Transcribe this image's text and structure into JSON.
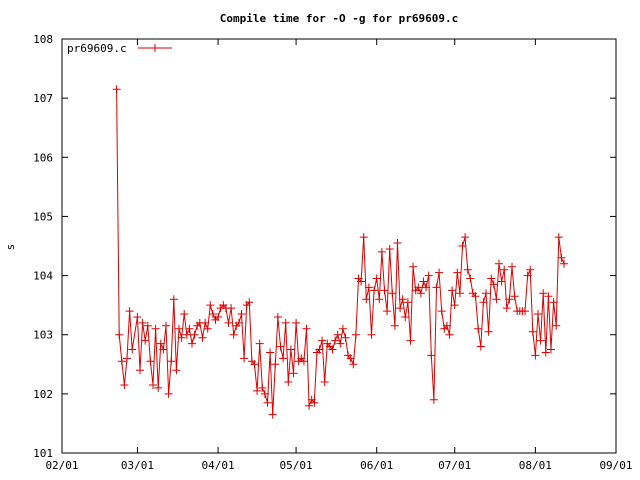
{
  "chart_data": {
    "type": "line",
    "title": "Compile time for -O -g for pr69609.c",
    "xlabel": "",
    "ylabel": "s",
    "grid": false,
    "legend_position": "top-left",
    "colors": {
      "series": "#dd0000",
      "axis": "#000000",
      "background": "#ffffff"
    },
    "x_ticks": [
      "02/01",
      "03/01",
      "04/01",
      "05/01",
      "06/01",
      "07/01",
      "08/01",
      "09/01"
    ],
    "xlim": [
      "02/01",
      "09/01"
    ],
    "y_ticks": [
      "101",
      "102",
      "103",
      "104",
      "105",
      "106",
      "107",
      "108"
    ],
    "ylim": [
      101,
      108
    ],
    "series": [
      {
        "name": "pr69609.c",
        "points": [
          [
            "02/22",
            107.15
          ],
          [
            "02/23",
            103.0
          ],
          [
            "02/24",
            102.55
          ],
          [
            "02/25",
            102.15
          ],
          [
            "02/26",
            102.6
          ],
          [
            "02/27",
            103.4
          ],
          [
            "02/28",
            102.75
          ],
          [
            "03/01",
            103.3
          ],
          [
            "03/02",
            102.4
          ],
          [
            "03/03",
            103.2
          ],
          [
            "03/04",
            102.9
          ],
          [
            "03/05",
            103.15
          ],
          [
            "03/06",
            102.55
          ],
          [
            "03/07",
            102.15
          ],
          [
            "03/08",
            103.1
          ],
          [
            "03/09",
            102.1
          ],
          [
            "03/10",
            102.85
          ],
          [
            "03/11",
            102.75
          ],
          [
            "03/12",
            103.15
          ],
          [
            "03/13",
            102.0
          ],
          [
            "03/14",
            102.55
          ],
          [
            "03/15",
            103.6
          ],
          [
            "03/16",
            102.4
          ],
          [
            "03/17",
            103.1
          ],
          [
            "03/18",
            102.95
          ],
          [
            "03/19",
            103.35
          ],
          [
            "03/20",
            103.0
          ],
          [
            "03/21",
            103.1
          ],
          [
            "03/22",
            102.85
          ],
          [
            "03/23",
            103.0
          ],
          [
            "03/24",
            103.15
          ],
          [
            "03/25",
            103.2
          ],
          [
            "03/26",
            102.95
          ],
          [
            "03/27",
            103.2
          ],
          [
            "03/28",
            103.1
          ],
          [
            "03/29",
            103.5
          ],
          [
            "03/30",
            103.35
          ],
          [
            "03/31",
            103.25
          ],
          [
            "04/01",
            103.3
          ],
          [
            "04/02",
            103.45
          ],
          [
            "04/03",
            103.5
          ],
          [
            "04/04",
            103.45
          ],
          [
            "04/05",
            103.2
          ],
          [
            "04/06",
            103.45
          ],
          [
            "04/07",
            103.0
          ],
          [
            "04/08",
            103.15
          ],
          [
            "04/09",
            103.2
          ],
          [
            "04/10",
            103.35
          ],
          [
            "04/11",
            102.6
          ],
          [
            "04/12",
            103.5
          ],
          [
            "04/13",
            103.55
          ],
          [
            "04/14",
            102.55
          ],
          [
            "04/15",
            102.5
          ],
          [
            "04/16",
            102.05
          ],
          [
            "04/17",
            102.85
          ],
          [
            "04/18",
            102.1
          ],
          [
            "04/19",
            102.0
          ],
          [
            "04/20",
            101.85
          ],
          [
            "04/21",
            102.7
          ],
          [
            "04/22",
            101.65
          ],
          [
            "04/23",
            102.5
          ],
          [
            "04/24",
            103.3
          ],
          [
            "04/25",
            102.8
          ],
          [
            "04/26",
            102.6
          ],
          [
            "04/27",
            103.2
          ],
          [
            "04/28",
            102.2
          ],
          [
            "04/29",
            102.75
          ],
          [
            "04/30",
            102.35
          ],
          [
            "05/01",
            103.2
          ],
          [
            "05/02",
            102.55
          ],
          [
            "05/03",
            102.6
          ],
          [
            "05/04",
            102.55
          ],
          [
            "05/05",
            103.1
          ],
          [
            "05/06",
            101.8
          ],
          [
            "05/07",
            101.9
          ],
          [
            "05/08",
            101.85
          ],
          [
            "05/09",
            102.7
          ],
          [
            "05/10",
            102.75
          ],
          [
            "05/11",
            102.9
          ],
          [
            "05/12",
            102.2
          ],
          [
            "05/13",
            102.85
          ],
          [
            "05/14",
            102.8
          ],
          [
            "05/15",
            102.75
          ],
          [
            "05/16",
            102.9
          ],
          [
            "05/17",
            103.0
          ],
          [
            "05/18",
            102.85
          ],
          [
            "05/19",
            103.1
          ],
          [
            "05/20",
            102.95
          ],
          [
            "05/21",
            102.65
          ],
          [
            "05/22",
            102.6
          ],
          [
            "05/23",
            102.5
          ],
          [
            "05/24",
            103.0
          ],
          [
            "05/25",
            103.95
          ],
          [
            "05/26",
            103.9
          ],
          [
            "05/27",
            104.65
          ],
          [
            "05/28",
            103.6
          ],
          [
            "05/29",
            103.8
          ],
          [
            "05/30",
            103.0
          ],
          [
            "05/31",
            103.75
          ],
          [
            "06/01",
            103.95
          ],
          [
            "06/02",
            103.6
          ],
          [
            "06/03",
            104.4
          ],
          [
            "06/04",
            103.75
          ],
          [
            "06/05",
            103.4
          ],
          [
            "06/06",
            104.45
          ],
          [
            "06/07",
            103.7
          ],
          [
            "06/08",
            103.15
          ],
          [
            "06/09",
            104.55
          ],
          [
            "06/10",
            103.45
          ],
          [
            "06/11",
            103.6
          ],
          [
            "06/12",
            103.3
          ],
          [
            "06/13",
            103.55
          ],
          [
            "06/14",
            102.9
          ],
          [
            "06/15",
            104.15
          ],
          [
            "06/16",
            103.75
          ],
          [
            "06/17",
            103.8
          ],
          [
            "06/18",
            103.7
          ],
          [
            "06/19",
            103.9
          ],
          [
            "06/20",
            103.8
          ],
          [
            "06/21",
            104.0
          ],
          [
            "06/22",
            102.65
          ],
          [
            "06/23",
            101.9
          ],
          [
            "06/24",
            103.8
          ],
          [
            "06/25",
            104.05
          ],
          [
            "06/26",
            103.4
          ],
          [
            "06/27",
            103.1
          ],
          [
            "06/28",
            103.15
          ],
          [
            "06/29",
            103.0
          ],
          [
            "06/30",
            103.75
          ],
          [
            "07/01",
            103.5
          ],
          [
            "07/02",
            104.05
          ],
          [
            "07/03",
            103.7
          ],
          [
            "07/04",
            104.5
          ],
          [
            "07/05",
            104.65
          ],
          [
            "07/06",
            104.1
          ],
          [
            "07/07",
            103.95
          ],
          [
            "07/08",
            103.7
          ],
          [
            "07/09",
            103.65
          ],
          [
            "07/10",
            103.1
          ],
          [
            "07/11",
            102.8
          ],
          [
            "07/12",
            103.55
          ],
          [
            "07/13",
            103.7
          ],
          [
            "07/14",
            103.05
          ],
          [
            "07/15",
            103.95
          ],
          [
            "07/16",
            103.85
          ],
          [
            "07/17",
            103.6
          ],
          [
            "07/18",
            104.2
          ],
          [
            "07/19",
            103.9
          ],
          [
            "07/20",
            104.1
          ],
          [
            "07/21",
            103.45
          ],
          [
            "07/22",
            103.6
          ],
          [
            "07/23",
            104.15
          ],
          [
            "07/24",
            103.65
          ],
          [
            "07/25",
            103.4
          ],
          [
            "07/26",
            103.4
          ],
          [
            "07/27",
            103.4
          ],
          [
            "07/28",
            103.4
          ],
          [
            "07/29",
            104.0
          ],
          [
            "07/30",
            104.1
          ],
          [
            "07/31",
            103.05
          ],
          [
            "08/01",
            102.65
          ],
          [
            "08/02",
            103.35
          ],
          [
            "08/03",
            102.9
          ],
          [
            "08/04",
            103.7
          ],
          [
            "08/05",
            102.7
          ],
          [
            "08/06",
            103.65
          ],
          [
            "08/07",
            102.75
          ],
          [
            "08/08",
            103.55
          ],
          [
            "08/09",
            103.15
          ],
          [
            "08/10",
            104.65
          ],
          [
            "08/11",
            104.3
          ],
          [
            "08/12",
            104.2
          ]
        ]
      }
    ]
  }
}
